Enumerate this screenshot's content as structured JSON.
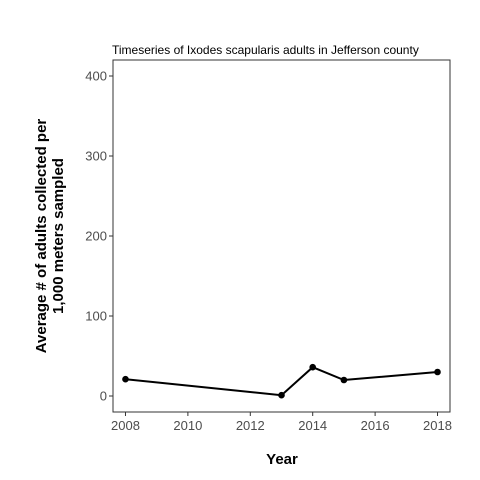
{
  "chart_data": {
    "type": "line",
    "title": "Timeseries of Ixodes scapularis adults in Jefferson county",
    "xlabel": "Year",
    "ylabel_lines": [
      "Average # of adults collected per",
      "1,000 meters sampled"
    ],
    "xlim": [
      2007.6,
      2018.4
    ],
    "ylim": [
      -20,
      420
    ],
    "x_ticks": [
      2008,
      2010,
      2012,
      2014,
      2016,
      2018
    ],
    "y_ticks": [
      0,
      100,
      200,
      300,
      400
    ],
    "grid": false,
    "legend": "none",
    "series": [
      {
        "x": [
          2008,
          2013,
          2014,
          2015,
          2018
        ],
        "y": [
          21,
          1,
          36,
          20,
          30
        ]
      }
    ]
  }
}
